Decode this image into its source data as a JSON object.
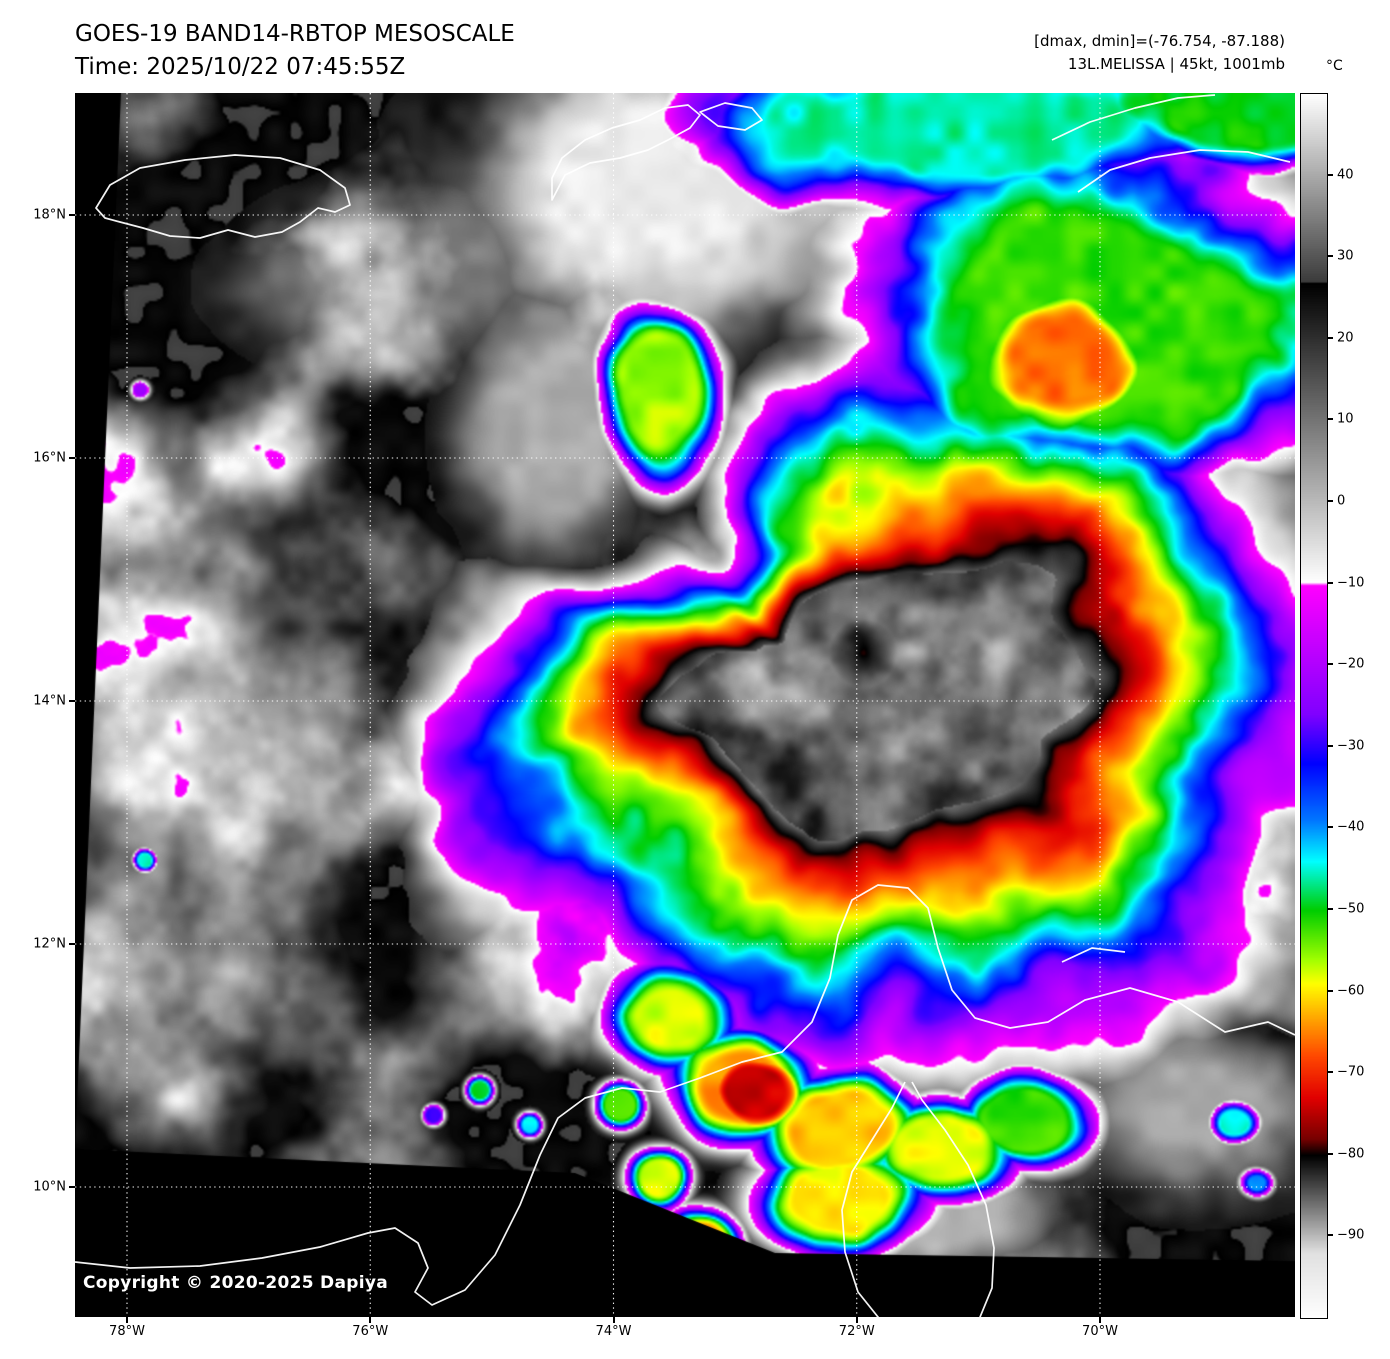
{
  "header": {
    "title": "GOES-19 BAND14-RBTOP MESOSCALE",
    "time": "Time: 2025/10/22 07:45:55Z",
    "dminmax": "[dmax, dmin]=(-76.754, -87.188)",
    "storm": "13L.MELISSA | 45kt, 1001mb"
  },
  "plot": {
    "copyright": "Copyright © 2020-2025 Dapiya",
    "lat_ticks": [
      {
        "label": "18°N",
        "value": 18
      },
      {
        "label": "16°N",
        "value": 16
      },
      {
        "label": "14°N",
        "value": 14
      },
      {
        "label": "12°N",
        "value": 12
      },
      {
        "label": "10°N",
        "value": 10
      }
    ],
    "lon_ticks": [
      {
        "label": "78°W",
        "value": -78
      },
      {
        "label": "76°W",
        "value": -76
      },
      {
        "label": "74°W",
        "value": -74
      },
      {
        "label": "72°W",
        "value": -72
      },
      {
        "label": "70°W",
        "value": -70
      }
    ]
  },
  "colorbar": {
    "unit": "°C",
    "domain": [
      50,
      -100
    ],
    "ticks": [
      {
        "label": "40",
        "value": 40
      },
      {
        "label": "30",
        "value": 30
      },
      {
        "label": "20",
        "value": 20
      },
      {
        "label": "10",
        "value": 10
      },
      {
        "label": "0",
        "value": 0
      },
      {
        "label": "−10",
        "value": -10
      },
      {
        "label": "−20",
        "value": -20
      },
      {
        "label": "−30",
        "value": -30
      },
      {
        "label": "−40",
        "value": -40
      },
      {
        "label": "−50",
        "value": -50
      },
      {
        "label": "−60",
        "value": -60
      },
      {
        "label": "−70",
        "value": -70
      },
      {
        "label": "−80",
        "value": -80
      },
      {
        "label": "−90",
        "value": -90
      }
    ],
    "stops": [
      {
        "v": 50,
        "c": [
          255,
          255,
          255
        ]
      },
      {
        "v": 27,
        "c": [
          60,
          60,
          60
        ]
      },
      {
        "v": 26.9,
        "c": [
          0,
          0,
          0
        ]
      },
      {
        "v": -9.8,
        "c": [
          255,
          255,
          255
        ]
      },
      {
        "v": -10.2,
        "c": [
          255,
          0,
          255
        ]
      },
      {
        "v": -26,
        "c": [
          128,
          0,
          255
        ]
      },
      {
        "v": -32,
        "c": [
          0,
          0,
          255
        ]
      },
      {
        "v": -39,
        "c": [
          0,
          120,
          255
        ]
      },
      {
        "v": -44,
        "c": [
          0,
          255,
          255
        ]
      },
      {
        "v": -50,
        "c": [
          0,
          205,
          0
        ]
      },
      {
        "v": -56,
        "c": [
          160,
          255,
          0
        ]
      },
      {
        "v": -59,
        "c": [
          255,
          255,
          0
        ]
      },
      {
        "v": -64,
        "c": [
          255,
          150,
          0
        ]
      },
      {
        "v": -68,
        "c": [
          255,
          70,
          0
        ]
      },
      {
        "v": -73,
        "c": [
          225,
          0,
          0
        ]
      },
      {
        "v": -78,
        "c": [
          120,
          0,
          0
        ]
      },
      {
        "v": -80.01,
        "c": [
          0,
          0,
          0
        ]
      },
      {
        "v": -92,
        "c": [
          225,
          225,
          225
        ]
      },
      {
        "v": -100,
        "c": [
          255,
          255,
          255
        ]
      }
    ]
  }
}
